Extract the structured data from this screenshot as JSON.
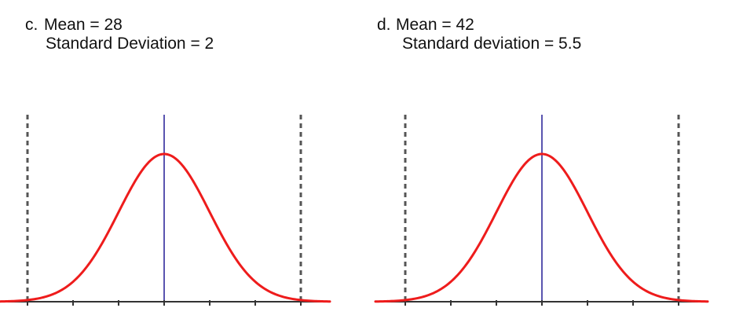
{
  "problems": [
    {
      "letter": "c.",
      "mean_text": "Mean = 28",
      "sd_text": "Standard Deviation = 2"
    },
    {
      "letter": "d.",
      "mean_text": "Mean = 42",
      "sd_text": "Standard deviation = 5.5"
    }
  ],
  "chart_data": [
    {
      "type": "line",
      "mean": 28,
      "sd": 2,
      "curve": "normal-density",
      "x_range_sd": [
        -3,
        3
      ],
      "x_ticks_sd": [
        -3,
        -2,
        -1,
        0,
        1,
        2,
        3
      ],
      "tick_labels": [],
      "vertical_reference_lines": [
        {
          "at_sd": -3,
          "style": "dashed",
          "color": "#555555"
        },
        {
          "at_sd": 0,
          "style": "solid",
          "color": "#5a55b0"
        },
        {
          "at_sd": 3,
          "style": "dashed",
          "color": "#555555"
        }
      ],
      "curve_color": "#ee1c1c",
      "axis_color": "#333333",
      "grid": false,
      "legend": "none"
    },
    {
      "type": "line",
      "mean": 42,
      "sd": 5.5,
      "curve": "normal-density",
      "x_range_sd": [
        -3,
        3
      ],
      "x_ticks_sd": [
        -3,
        -2,
        -1,
        0,
        1,
        2,
        3
      ],
      "tick_labels": [],
      "vertical_reference_lines": [
        {
          "at_sd": -3,
          "style": "dashed",
          "color": "#555555"
        },
        {
          "at_sd": 0,
          "style": "solid",
          "color": "#5a55b0"
        },
        {
          "at_sd": 3,
          "style": "dashed",
          "color": "#555555"
        }
      ],
      "curve_color": "#ee1c1c",
      "axis_color": "#333333",
      "grid": false,
      "legend": "none"
    }
  ]
}
